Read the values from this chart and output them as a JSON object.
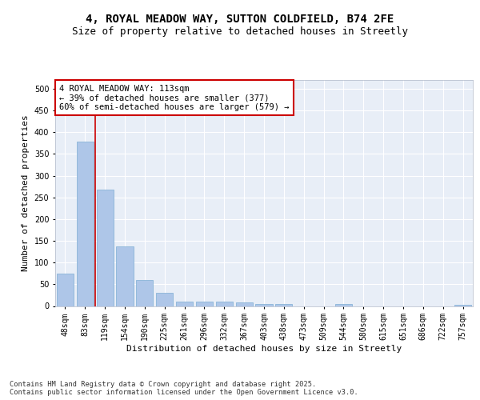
{
  "title_line1": "4, ROYAL MEADOW WAY, SUTTON COLDFIELD, B74 2FE",
  "title_line2": "Size of property relative to detached houses in Streetly",
  "xlabel": "Distribution of detached houses by size in Streetly",
  "ylabel": "Number of detached properties",
  "categories": [
    "48sqm",
    "83sqm",
    "119sqm",
    "154sqm",
    "190sqm",
    "225sqm",
    "261sqm",
    "296sqm",
    "332sqm",
    "367sqm",
    "403sqm",
    "438sqm",
    "473sqm",
    "509sqm",
    "544sqm",
    "580sqm",
    "615sqm",
    "651sqm",
    "686sqm",
    "722sqm",
    "757sqm"
  ],
  "values": [
    75,
    378,
    268,
    137,
    60,
    30,
    10,
    10,
    10,
    8,
    5,
    5,
    0,
    0,
    4,
    0,
    0,
    0,
    0,
    0,
    3
  ],
  "bar_color": "#aec6e8",
  "bar_edge_color": "#8ab4d8",
  "vline_x": 1.5,
  "vline_color": "#cc0000",
  "annotation_text": "4 ROYAL MEADOW WAY: 113sqm\n← 39% of detached houses are smaller (377)\n60% of semi-detached houses are larger (579) →",
  "annotation_box_color": "#ffffff",
  "annotation_box_edge_color": "#cc0000",
  "ylim": [
    0,
    520
  ],
  "yticks": [
    0,
    50,
    100,
    150,
    200,
    250,
    300,
    350,
    400,
    450,
    500
  ],
  "background_color": "#e8eef7",
  "grid_color": "#ffffff",
  "footer_text": "Contains HM Land Registry data © Crown copyright and database right 2025.\nContains public sector information licensed under the Open Government Licence v3.0.",
  "title_fontsize": 10,
  "subtitle_fontsize": 9,
  "axis_label_fontsize": 8,
  "tick_fontsize": 7,
  "annotation_fontsize": 7.5,
  "ylabel_fontsize": 8
}
